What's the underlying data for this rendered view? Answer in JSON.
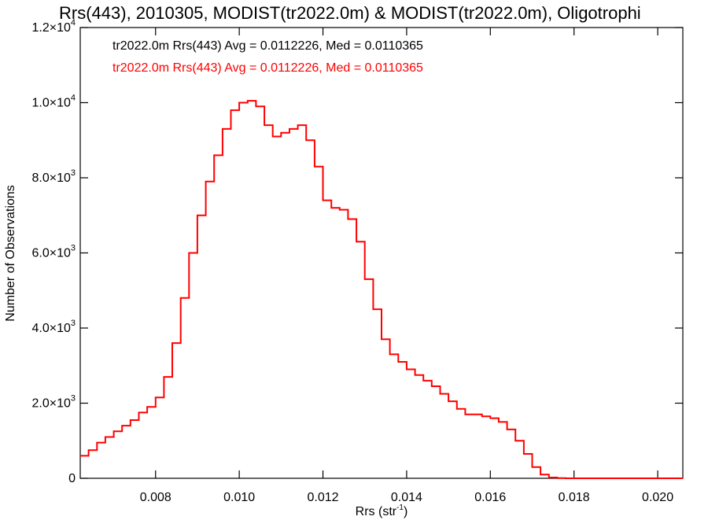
{
  "chart_data": {
    "type": "line",
    "title": "Rrs(443), 2010305, MODIST(tr2022.0m) & MODIST(tr2022.0m), Oligotrophi",
    "xlabel": "Rrs (str",
    "xlabel_sup": "-1",
    "xlabel_end": ")",
    "ylabel": "Number of Observations",
    "xlim": [
      0.0062,
      0.0206
    ],
    "ylim": [
      0,
      12000
    ],
    "grid": false,
    "legend_position": "top-left",
    "x_ticks": [
      {
        "value": 0.008,
        "label": "0.008"
      },
      {
        "value": 0.01,
        "label": "0.010"
      },
      {
        "value": 0.012,
        "label": "0.012"
      },
      {
        "value": 0.014,
        "label": "0.014"
      },
      {
        "value": 0.016,
        "label": "0.016"
      },
      {
        "value": 0.018,
        "label": "0.018"
      },
      {
        "value": 0.02,
        "label": "0.020"
      }
    ],
    "y_ticks": [
      {
        "value": 0,
        "mant": "0",
        "exp": ""
      },
      {
        "value": 2000,
        "mant": "2.0×10",
        "exp": "3"
      },
      {
        "value": 4000,
        "mant": "4.0×10",
        "exp": "3"
      },
      {
        "value": 6000,
        "mant": "6.0×10",
        "exp": "3"
      },
      {
        "value": 8000,
        "mant": "8.0×10",
        "exp": "3"
      },
      {
        "value": 10000,
        "mant": "1.0×10",
        "exp": "4"
      },
      {
        "value": 12000,
        "mant": "1.2×10",
        "exp": "4"
      }
    ],
    "annotations": [
      {
        "text": "tr2022.0m Rrs(443) Avg = 0.0112226, Med = 0.0110365",
        "color": "#000000"
      },
      {
        "text": "tr2022.0m Rrs(443) Avg = 0.0112226, Med = 0.0110365",
        "color": "#ff0000"
      }
    ],
    "series": [
      {
        "color": "#ff0000",
        "step": true,
        "x": [
          0.0062,
          0.0064,
          0.0066,
          0.0068,
          0.007,
          0.0072,
          0.0074,
          0.0076,
          0.0078,
          0.008,
          0.0082,
          0.0084,
          0.0086,
          0.0088,
          0.009,
          0.0092,
          0.0094,
          0.0096,
          0.0098,
          0.01,
          0.0102,
          0.0104,
          0.0106,
          0.0108,
          0.011,
          0.0112,
          0.0114,
          0.0116,
          0.0118,
          0.012,
          0.0122,
          0.0124,
          0.0126,
          0.0128,
          0.013,
          0.0132,
          0.0134,
          0.0136,
          0.0138,
          0.014,
          0.0142,
          0.0144,
          0.0146,
          0.0148,
          0.015,
          0.0152,
          0.0154,
          0.0156,
          0.0158,
          0.016,
          0.0162,
          0.0164,
          0.0166,
          0.0168,
          0.017,
          0.0172,
          0.0174,
          0.0176,
          0.0178,
          0.018,
          0.0182,
          0.0184,
          0.0186,
          0.0188,
          0.019,
          0.0192,
          0.0194,
          0.0196,
          0.0198,
          0.02,
          0.0202,
          0.0204,
          0.0206
        ],
        "y": [
          600,
          750,
          950,
          1100,
          1250,
          1400,
          1550,
          1750,
          1900,
          2150,
          2700,
          3600,
          4800,
          6000,
          7000,
          7900,
          8600,
          9300,
          9800,
          10000,
          10050,
          9900,
          9400,
          9100,
          9200,
          9300,
          9400,
          9000,
          8300,
          7400,
          7200,
          7150,
          6900,
          6300,
          5300,
          4500,
          3700,
          3300,
          3100,
          2900,
          2750,
          2600,
          2450,
          2250,
          2050,
          1850,
          1700,
          1700,
          1650,
          1600,
          1500,
          1300,
          1000,
          650,
          300,
          100,
          20,
          5,
          0,
          0,
          0,
          0,
          0,
          0,
          0,
          0,
          0,
          0,
          0,
          0,
          0,
          0,
          0
        ]
      }
    ]
  }
}
